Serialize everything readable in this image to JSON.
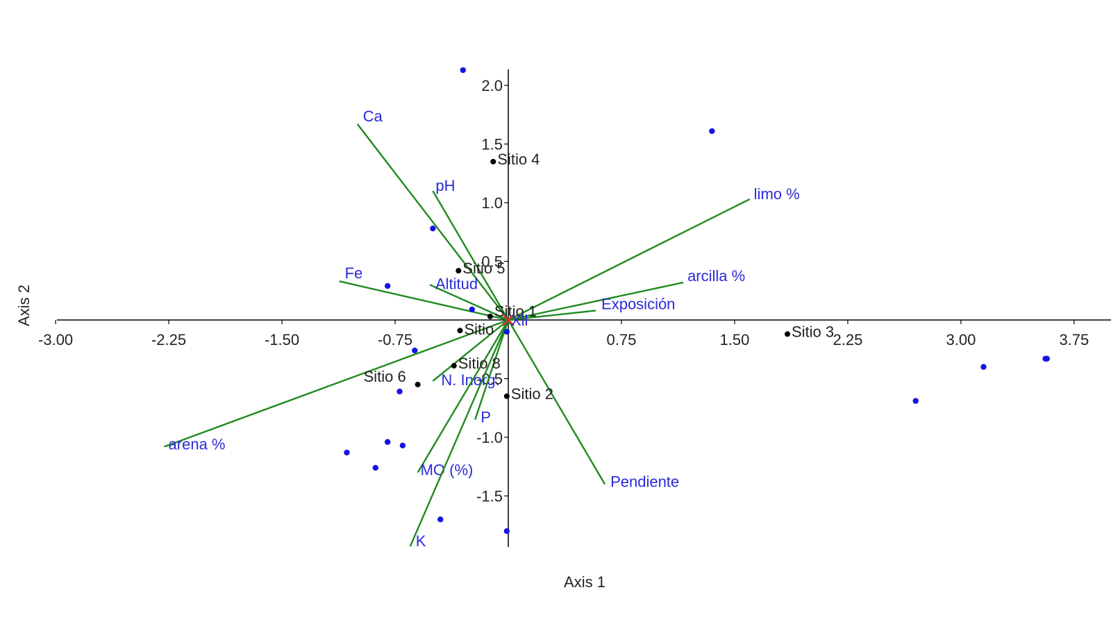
{
  "chart_data": {
    "type": "scatter",
    "subtype": "biplot",
    "xlabel": "Axis 1",
    "ylabel": "Axis 2",
    "xlim": [
      -3.0,
      4.0
    ],
    "ylim": [
      -1.95,
      2.15
    ],
    "x_ticks": [
      -3.0,
      -2.25,
      -1.5,
      -0.75,
      0.75,
      1.5,
      2.25,
      3.0,
      3.75
    ],
    "x_tick_labels": [
      "-3.00",
      "-2.25",
      "-1.50",
      "-0.75",
      "0.75",
      "1.50",
      "2.25",
      "3.00",
      "3.75"
    ],
    "y_ticks": [
      2.0,
      1.5,
      1.0,
      0.5,
      -0.5,
      -1.0,
      -1.5
    ],
    "y_tick_labels": [
      "2.0",
      "1.5",
      "1.0",
      "0.5",
      "-0.5",
      "-1.0",
      "-1.5"
    ],
    "grid": false,
    "vector_color": "#1e8a1e",
    "vector_label_color": "#2a2ad8",
    "point_color": "#1414e6",
    "site_color": "#000000",
    "vectors": [
      {
        "label": "Ca",
        "x": -1.0,
        "y": 1.67
      },
      {
        "label": "pH",
        "x": -0.5,
        "y": 1.1
      },
      {
        "label": "limo %",
        "x": 1.6,
        "y": 1.03
      },
      {
        "label": "arcilla %",
        "x": 1.16,
        "y": 0.32
      },
      {
        "label": "Exposición",
        "x": 0.58,
        "y": 0.08
      },
      {
        "label": "Fe",
        "x": -1.12,
        "y": 0.33
      },
      {
        "label": "Altitud",
        "x": -0.52,
        "y": 0.3
      },
      {
        "label": "arena %",
        "x": -2.28,
        "y": -1.08
      },
      {
        "label": "N. Inorg.",
        "x": -0.5,
        "y": -0.52
      },
      {
        "label": "P",
        "x": -0.22,
        "y": -0.85
      },
      {
        "label": "MO (%)",
        "x": -0.6,
        "y": -1.3
      },
      {
        "label": "K",
        "x": -0.65,
        "y": -1.93
      },
      {
        "label": "Pendiente",
        "x": 0.64,
        "y": -1.4
      }
    ],
    "sites": [
      {
        "label": "Sitio 4",
        "x": -0.1,
        "y": 1.35
      },
      {
        "label": "Sitio 5",
        "x": -0.33,
        "y": 0.42
      },
      {
        "label": "Sitio 1",
        "x": -0.12,
        "y": 0.03
      },
      {
        "label": "Sitio",
        "x": -0.32,
        "y": -0.09
      },
      {
        "label": "Sitio 3",
        "x": 1.85,
        "y": -0.12
      },
      {
        "label": "Sitio 8",
        "x": -0.36,
        "y": -0.39
      },
      {
        "label": "Sitio 6",
        "x": -0.6,
        "y": -0.55
      },
      {
        "label": "Sitio 2",
        "x": -0.01,
        "y": -0.65
      }
    ],
    "points": [
      {
        "x": -0.3,
        "y": 2.13
      },
      {
        "x": 1.35,
        "y": 1.61
      },
      {
        "x": -0.5,
        "y": 0.78
      },
      {
        "x": -0.8,
        "y": 0.29
      },
      {
        "x": -0.24,
        "y": 0.09
      },
      {
        "x": -0.01,
        "y": -0.1
      },
      {
        "x": -0.62,
        "y": -0.26
      },
      {
        "x": -0.72,
        "y": -0.61
      },
      {
        "x": -1.07,
        "y": -1.13
      },
      {
        "x": -0.8,
        "y": -1.04
      },
      {
        "x": -0.7,
        "y": -1.07
      },
      {
        "x": -0.88,
        "y": -1.26
      },
      {
        "x": -0.45,
        "y": -1.7
      },
      {
        "x": -0.01,
        "y": -1.8
      },
      {
        "x": 2.7,
        "y": -0.69
      },
      {
        "x": 3.15,
        "y": -0.4
      },
      {
        "x": 3.56,
        "y": -0.33
      },
      {
        "x": 3.57,
        "y": -0.33
      }
    ],
    "centroid_label": "Xll"
  }
}
